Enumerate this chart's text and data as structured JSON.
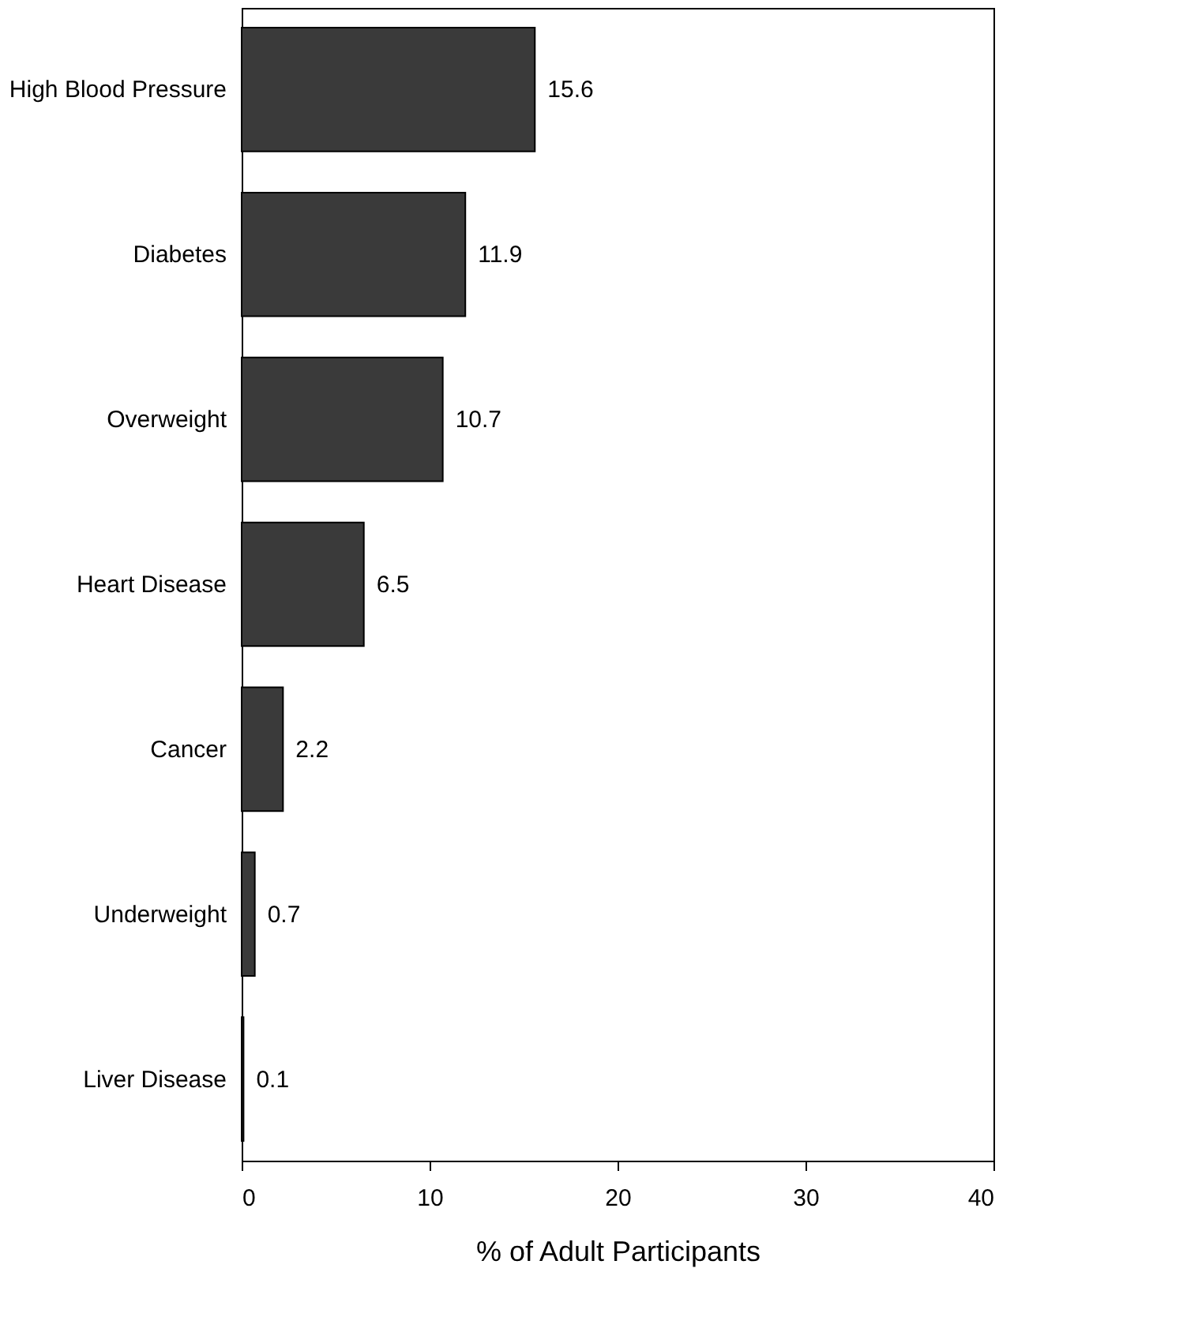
{
  "chart_data": {
    "type": "bar",
    "orientation": "horizontal",
    "categories": [
      "High Blood Pressure",
      "Diabetes",
      "Overweight",
      "Heart Disease",
      "Cancer",
      "Underweight",
      "Liver Disease"
    ],
    "values": [
      15.6,
      11.9,
      10.7,
      6.5,
      2.2,
      0.7,
      0.1
    ],
    "color": "#3a3a3a",
    "xlim": [
      0,
      40
    ],
    "xticks": [
      0,
      10,
      20,
      30,
      40
    ],
    "xlabel": "% of Adult Participants",
    "data_labels": true
  }
}
